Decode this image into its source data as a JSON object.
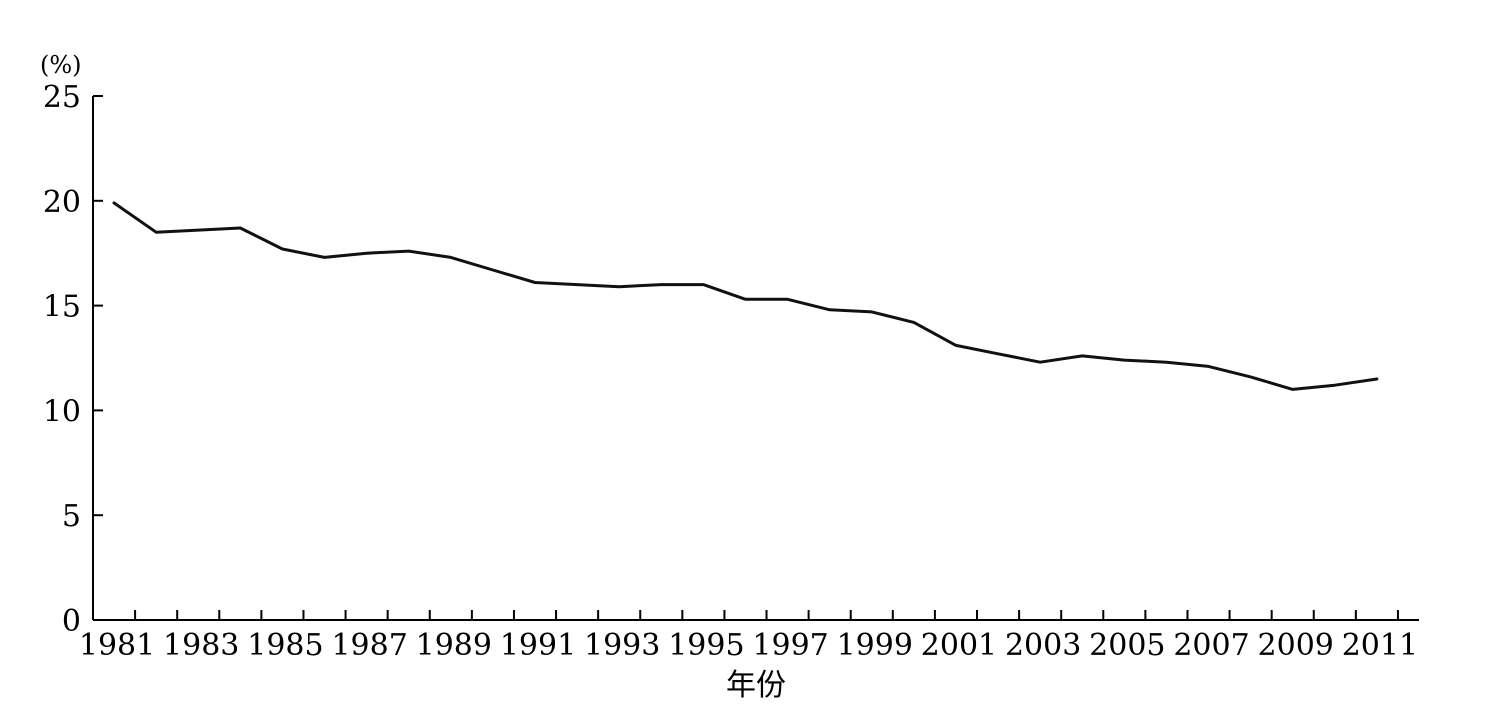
{
  "chart_data": {
    "type": "line",
    "title": "",
    "ylabel": "(%)",
    "xlabel": "年份",
    "ylim": [
      0,
      25
    ],
    "xlim": [
      1980.5,
      2012
    ],
    "yticks": [
      0,
      5,
      10,
      15,
      20,
      25
    ],
    "xticklabels": [
      "1981",
      "1983",
      "1985",
      "1987",
      "1989",
      "1991",
      "1993",
      "1995",
      "1997",
      "1999",
      "2001",
      "2003",
      "2005",
      "2007",
      "2009",
      "2011"
    ],
    "grid": false,
    "colors": {
      "line": "#111111",
      "axis": "#000000"
    },
    "series": [
      {
        "x": [
          1981,
          1982,
          1983,
          1984,
          1985,
          1986,
          1987,
          1988,
          1989,
          1990,
          1991,
          1992,
          1993,
          1994,
          1995,
          1996,
          1997,
          1998,
          1999,
          2000,
          2001,
          2002,
          2003,
          2004,
          2005,
          2006,
          2007,
          2008,
          2009,
          2010,
          2011
        ],
        "values": [
          19.9,
          18.5,
          18.6,
          18.7,
          17.7,
          17.3,
          17.5,
          17.6,
          17.3,
          16.7,
          16.1,
          16.0,
          15.9,
          16.0,
          16.0,
          15.3,
          15.3,
          14.8,
          14.7,
          14.2,
          13.1,
          12.7,
          12.3,
          12.6,
          12.4,
          12.3,
          12.1,
          11.6,
          11.0,
          11.2,
          11.5
        ]
      }
    ]
  }
}
